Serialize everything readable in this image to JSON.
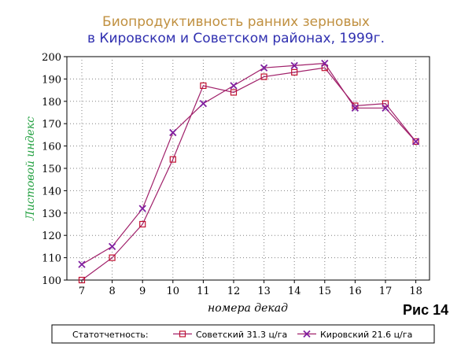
{
  "chart_data": {
    "type": "line",
    "title_line1": "Биопродуктивность ранних зерновых",
    "title_line2": "в Кировском и Советском районах, 1999г.",
    "xlabel": "номера декад",
    "ylabel": "Листовой индекс",
    "x": [
      7,
      8,
      9,
      10,
      11,
      12,
      13,
      14,
      15,
      16,
      17,
      18
    ],
    "xlim": [
      7,
      18
    ],
    "ylim": [
      100,
      200
    ],
    "yticks": [
      100,
      110,
      120,
      130,
      140,
      150,
      160,
      170,
      180,
      190,
      200
    ],
    "grid": true,
    "legend_position": "bottom",
    "legend_title": "Статотчетность:",
    "series": [
      {
        "name": "Советский 31.3 ц/га",
        "marker": "square",
        "values": [
          100,
          110,
          125,
          154,
          187,
          184,
          191,
          193,
          195,
          178,
          179,
          162
        ]
      },
      {
        "name": "Кировский 21.6 ц/га",
        "marker": "x",
        "values": [
          107,
          115,
          132,
          166,
          179,
          187,
          195,
          196,
          197,
          177,
          177,
          162
        ]
      }
    ],
    "colors": {
      "series_line": "#a0206a",
      "square_marker": "#c01030",
      "x_marker": "#8020a0",
      "title_line1": "#c09040",
      "title_line2": "#3030b0",
      "ylabel": "#22a040",
      "grid": "#808080"
    }
  },
  "figure_label": "Рис 14"
}
